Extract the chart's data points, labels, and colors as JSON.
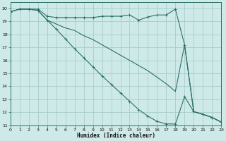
{
  "xlabel": "Humidex (Indice chaleur)",
  "bg_color": "#ceeae8",
  "grid_color": "#a8ccca",
  "line_color": "#2d7068",
  "xlim": [
    0,
    23
  ],
  "ylim": [
    11,
    20.5
  ],
  "yticks": [
    11,
    12,
    13,
    14,
    15,
    16,
    17,
    18,
    19,
    20
  ],
  "xticks": [
    0,
    1,
    2,
    3,
    4,
    5,
    6,
    7,
    8,
    9,
    10,
    11,
    12,
    13,
    14,
    15,
    16,
    17,
    18,
    19,
    20,
    21,
    22,
    23
  ],
  "line1_x": [
    0,
    1,
    2,
    3,
    4,
    5,
    6,
    7,
    8,
    9,
    10,
    11,
    12,
    13,
    14,
    15,
    16,
    17,
    18,
    19,
    20,
    21,
    22,
    23
  ],
  "line1_y": [
    19.75,
    19.95,
    19.95,
    19.95,
    19.4,
    19.3,
    19.3,
    19.3,
    19.3,
    19.3,
    19.4,
    19.4,
    19.4,
    19.5,
    19.1,
    19.35,
    19.5,
    19.5,
    19.95,
    17.2,
    12.05,
    11.85,
    11.6,
    11.25
  ],
  "line2_x": [
    0,
    1,
    2,
    3,
    4,
    5,
    6,
    7,
    8,
    9,
    10,
    11,
    12,
    13,
    14,
    15,
    16,
    17,
    18,
    19,
    20,
    21,
    22,
    23
  ],
  "line2_y": [
    19.75,
    19.95,
    19.95,
    19.85,
    19.1,
    18.8,
    18.5,
    18.3,
    17.9,
    17.6,
    17.2,
    16.8,
    16.4,
    16.0,
    15.6,
    15.2,
    14.7,
    14.2,
    13.6,
    17.2,
    12.05,
    11.85,
    11.6,
    11.25
  ],
  "line3_x": [
    0,
    1,
    2,
    3,
    4,
    5,
    6,
    7,
    8,
    9,
    10,
    11,
    12,
    13,
    14,
    15,
    16,
    17,
    18,
    19,
    20,
    21,
    22,
    23
  ],
  "line3_y": [
    19.75,
    19.95,
    19.95,
    19.85,
    19.1,
    18.4,
    17.65,
    16.9,
    16.2,
    15.5,
    14.8,
    14.15,
    13.5,
    12.85,
    12.2,
    11.7,
    11.3,
    11.1,
    11.1,
    13.2,
    12.05,
    11.85,
    11.6,
    11.25
  ]
}
